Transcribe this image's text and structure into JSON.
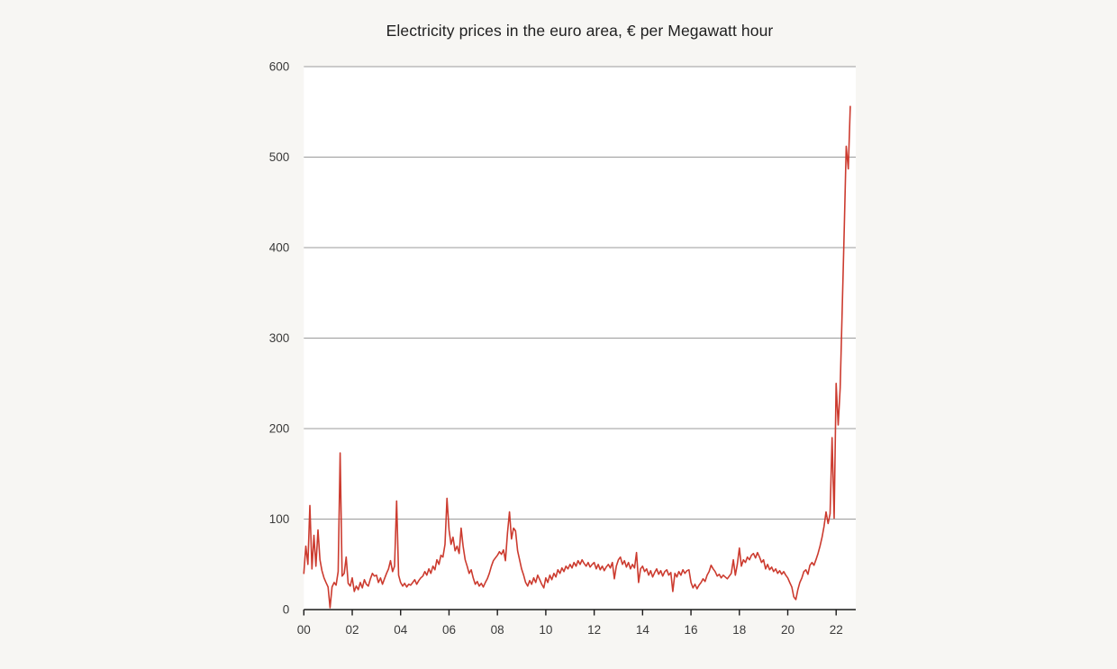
{
  "chart_data": {
    "type": "line",
    "title": "Electricity prices in the euro area, € per Megawatt hour",
    "ylabel": "",
    "xlabel": "",
    "unit": "€ per Megawatt hour",
    "frequency": "monthly",
    "x_start": "2000-01",
    "x_end": "2022-08",
    "x_tick_labels": [
      "00",
      "02",
      "04",
      "06",
      "08",
      "10",
      "12",
      "14",
      "16",
      "18",
      "20",
      "22"
    ],
    "y_ticks": [
      0,
      100,
      200,
      300,
      400,
      500,
      600
    ],
    "ylim": [
      0,
      600
    ],
    "grid": "horizontal",
    "legend": "none",
    "line_color": "#cc3b2f",
    "grid_color": "#9b9b9b",
    "axis_color": "#1a1a1a",
    "plot_bg": "#ffffff",
    "page_bg": "#f7f6f3",
    "series": [
      {
        "name": "Electricity price, euro area",
        "values": [
          40,
          70,
          50,
          115,
          45,
          82,
          48,
          88,
          55,
          43,
          35,
          30,
          25,
          2,
          25,
          30,
          27,
          42,
          173,
          37,
          40,
          58,
          29,
          26,
          35,
          20,
          26,
          22,
          30,
          24,
          33,
          28,
          26,
          34,
          40,
          37,
          38,
          30,
          35,
          28,
          34,
          40,
          45,
          54,
          42,
          48,
          120,
          38,
          30,
          26,
          29,
          25,
          28,
          27,
          30,
          33,
          28,
          32,
          35,
          37,
          42,
          38,
          45,
          40,
          48,
          44,
          55,
          50,
          60,
          58,
          72,
          123,
          88,
          72,
          80,
          65,
          70,
          62,
          90,
          70,
          55,
          48,
          40,
          44,
          35,
          28,
          31,
          26,
          29,
          25,
          30,
          34,
          40,
          48,
          54,
          57,
          60,
          64,
          61,
          66,
          54,
          85,
          108,
          78,
          90,
          87,
          65,
          55,
          45,
          38,
          30,
          26,
          32,
          28,
          35,
          30,
          38,
          33,
          28,
          24,
          35,
          30,
          38,
          33,
          40,
          36,
          44,
          40,
          46,
          42,
          48,
          45,
          50,
          46,
          52,
          48,
          54,
          50,
          55,
          51,
          48,
          52,
          47,
          50,
          52,
          45,
          50,
          44,
          48,
          43,
          47,
          50,
          46,
          52,
          34,
          48,
          55,
          58,
          50,
          54,
          47,
          52,
          45,
          50,
          46,
          63,
          30,
          45,
          48,
          42,
          45,
          38,
          43,
          36,
          41,
          45,
          39,
          43,
          37,
          42,
          44,
          38,
          41,
          20,
          40,
          36,
          42,
          38,
          44,
          40,
          43,
          44,
          30,
          24,
          28,
          23,
          27,
          30,
          34,
          31,
          38,
          42,
          49,
          45,
          42,
          37,
          39,
          35,
          38,
          36,
          34,
          37,
          40,
          55,
          38,
          50,
          68,
          48,
          55,
          52,
          58,
          55,
          60,
          62,
          57,
          63,
          58,
          52,
          55,
          45,
          50,
          44,
          47,
          42,
          45,
          40,
          43,
          39,
          42,
          38,
          35,
          30,
          25,
          14,
          11,
          22,
          30,
          35,
          42,
          44,
          39,
          49,
          52,
          49,
          55,
          62,
          70,
          80,
          92,
          108,
          95,
          106,
          190,
          101,
          250,
          204,
          245,
          330,
          420,
          512,
          487,
          556
        ]
      }
    ]
  }
}
